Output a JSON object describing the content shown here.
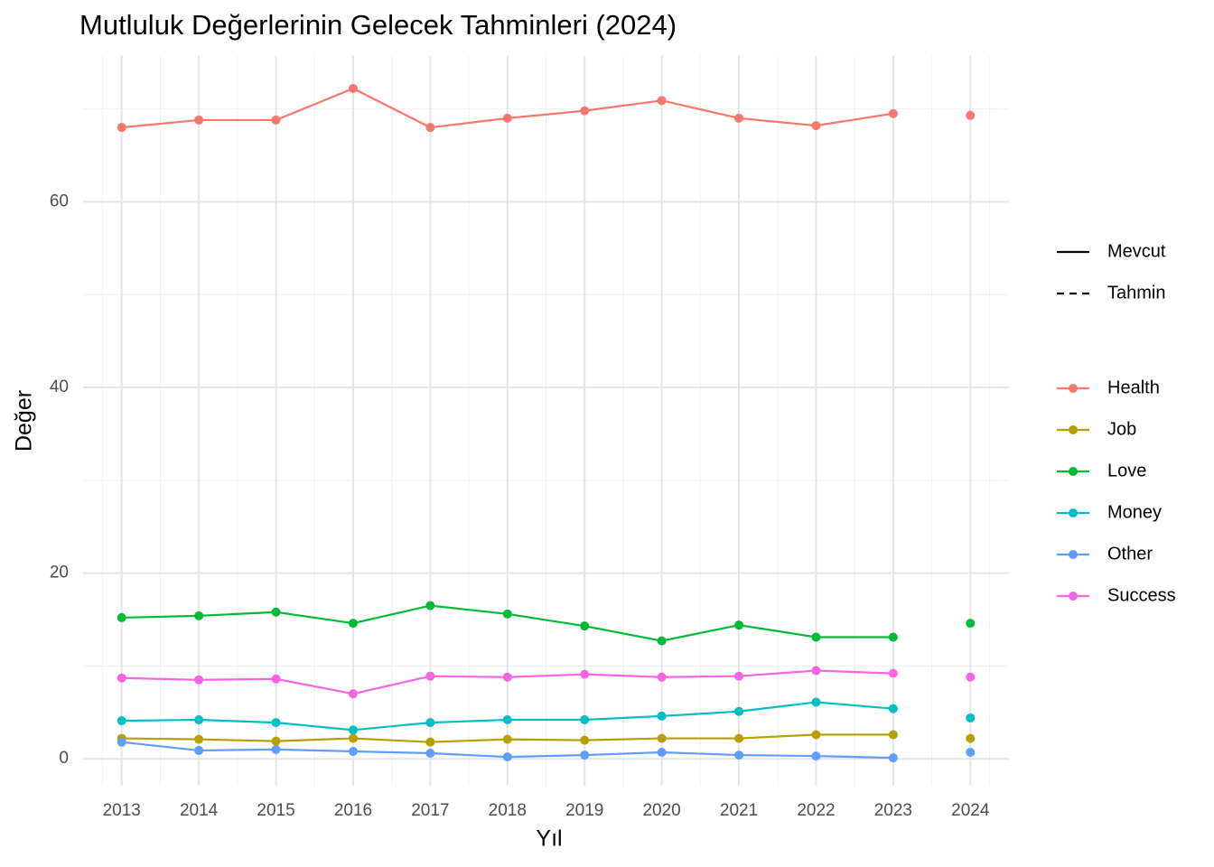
{
  "chart_data": {
    "type": "line",
    "title": "Mutluluk Değerlerinin Gelecek Tahminleri (2024)",
    "x_label": "Yıl",
    "y_label": "Değer",
    "x": [
      2013,
      2014,
      2015,
      2016,
      2017,
      2018,
      2019,
      2020,
      2021,
      2022,
      2023,
      2024
    ],
    "xlim": [
      2012.5,
      2024.5
    ],
    "xticks": [
      2013,
      2014,
      2015,
      2016,
      2017,
      2018,
      2019,
      2020,
      2021,
      2022,
      2023,
      2024
    ],
    "ylim": [
      -2.9,
      75.7
    ],
    "yticks": [
      0,
      20,
      40,
      60
    ],
    "grid": true,
    "linetypes": [
      {
        "name": "Mevcut",
        "dash": "none"
      },
      {
        "name": "Tahmin",
        "dash": "8 6"
      }
    ],
    "series": [
      {
        "name": "Health",
        "color": "#f8766d",
        "values": [
          68.0,
          68.8,
          68.8,
          72.2,
          68.0,
          69.0,
          69.8,
          70.9,
          69.0,
          68.2,
          69.5,
          null
        ],
        "forecast": [
          null,
          null,
          null,
          null,
          null,
          null,
          null,
          null,
          null,
          null,
          null,
          69.3
        ]
      },
      {
        "name": "Job",
        "color": "#b79f00",
        "values": [
          2.2,
          2.1,
          1.9,
          2.2,
          1.8,
          2.1,
          2.0,
          2.2,
          2.2,
          2.6,
          2.6,
          null
        ],
        "forecast": [
          null,
          null,
          null,
          null,
          null,
          null,
          null,
          null,
          null,
          null,
          null,
          2.2
        ]
      },
      {
        "name": "Love",
        "color": "#00ba38",
        "values": [
          15.2,
          15.4,
          15.8,
          14.6,
          16.5,
          15.6,
          14.3,
          12.7,
          14.4,
          13.1,
          13.1,
          null
        ],
        "forecast": [
          null,
          null,
          null,
          null,
          null,
          null,
          null,
          null,
          null,
          null,
          null,
          14.6
        ]
      },
      {
        "name": "Money",
        "color": "#00bfc4",
        "values": [
          4.1,
          4.2,
          3.9,
          3.1,
          3.9,
          4.2,
          4.2,
          4.6,
          5.1,
          6.1,
          5.4,
          null
        ],
        "forecast": [
          null,
          null,
          null,
          null,
          null,
          null,
          null,
          null,
          null,
          null,
          null,
          4.4
        ]
      },
      {
        "name": "Other",
        "color": "#619cff",
        "values": [
          1.8,
          0.9,
          1.0,
          0.8,
          0.6,
          0.2,
          0.4,
          0.7,
          0.4,
          0.3,
          0.1,
          null
        ],
        "forecast": [
          null,
          null,
          null,
          null,
          null,
          null,
          null,
          null,
          null,
          null,
          null,
          0.7
        ]
      },
      {
        "name": "Success",
        "color": "#f564e3",
        "values": [
          8.7,
          8.5,
          8.6,
          7.0,
          8.9,
          8.8,
          9.1,
          8.8,
          8.9,
          9.5,
          9.2,
          null
        ],
        "forecast": [
          null,
          null,
          null,
          null,
          null,
          null,
          null,
          null,
          null,
          null,
          null,
          8.8
        ]
      }
    ]
  }
}
